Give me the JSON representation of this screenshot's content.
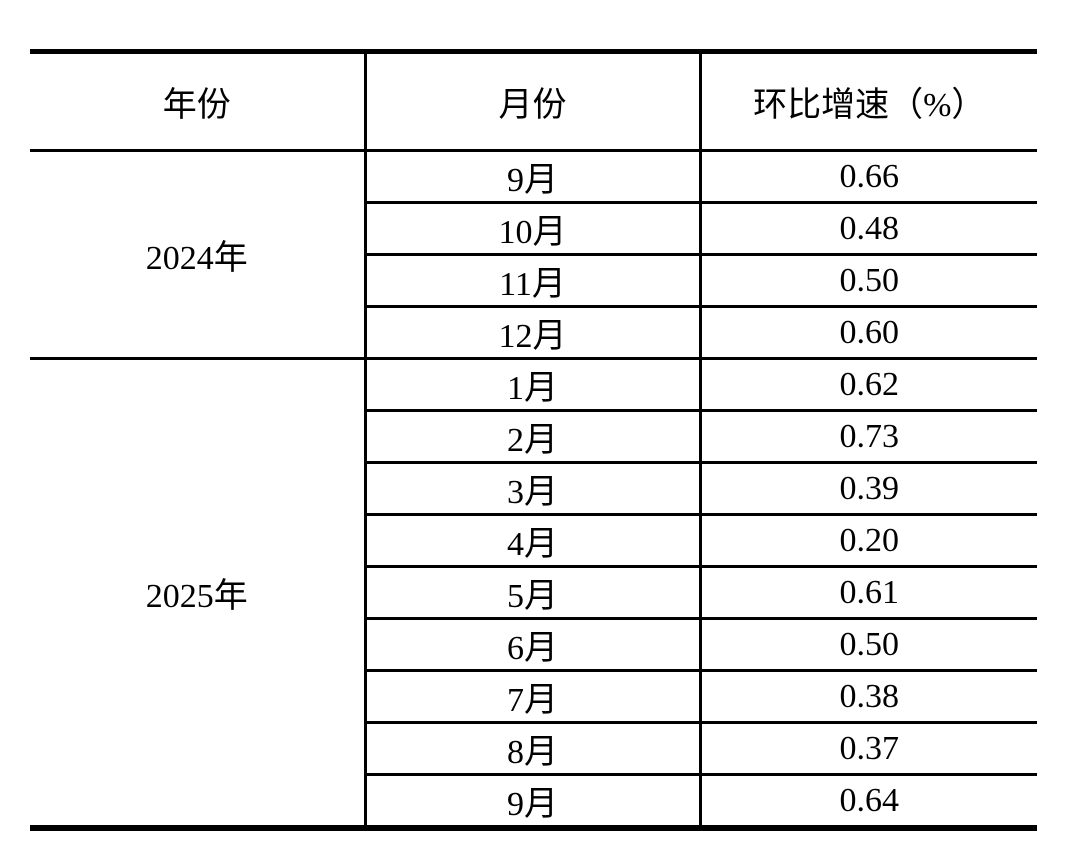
{
  "chart_data": {
    "type": "table",
    "columns": [
      "年份",
      "月份",
      "环比增速（%）"
    ],
    "groups": [
      {
        "year": "2024年",
        "rows": [
          [
            "9月",
            "0.66"
          ],
          [
            "10月",
            "0.48"
          ],
          [
            "11月",
            "0.50"
          ],
          [
            "12月",
            "0.60"
          ]
        ]
      },
      {
        "year": "2025年",
        "rows": [
          [
            "1月",
            "0.62"
          ],
          [
            "2月",
            "0.73"
          ],
          [
            "3月",
            "0.39"
          ],
          [
            "4月",
            "0.20"
          ],
          [
            "5月",
            "0.61"
          ],
          [
            "6月",
            "0.50"
          ],
          [
            "7月",
            "0.38"
          ],
          [
            "8月",
            "0.37"
          ],
          [
            "9月",
            "0.64"
          ]
        ]
      }
    ]
  },
  "colors": {
    "background": "#ffffff",
    "text": "#000000",
    "border": "#000000"
  }
}
